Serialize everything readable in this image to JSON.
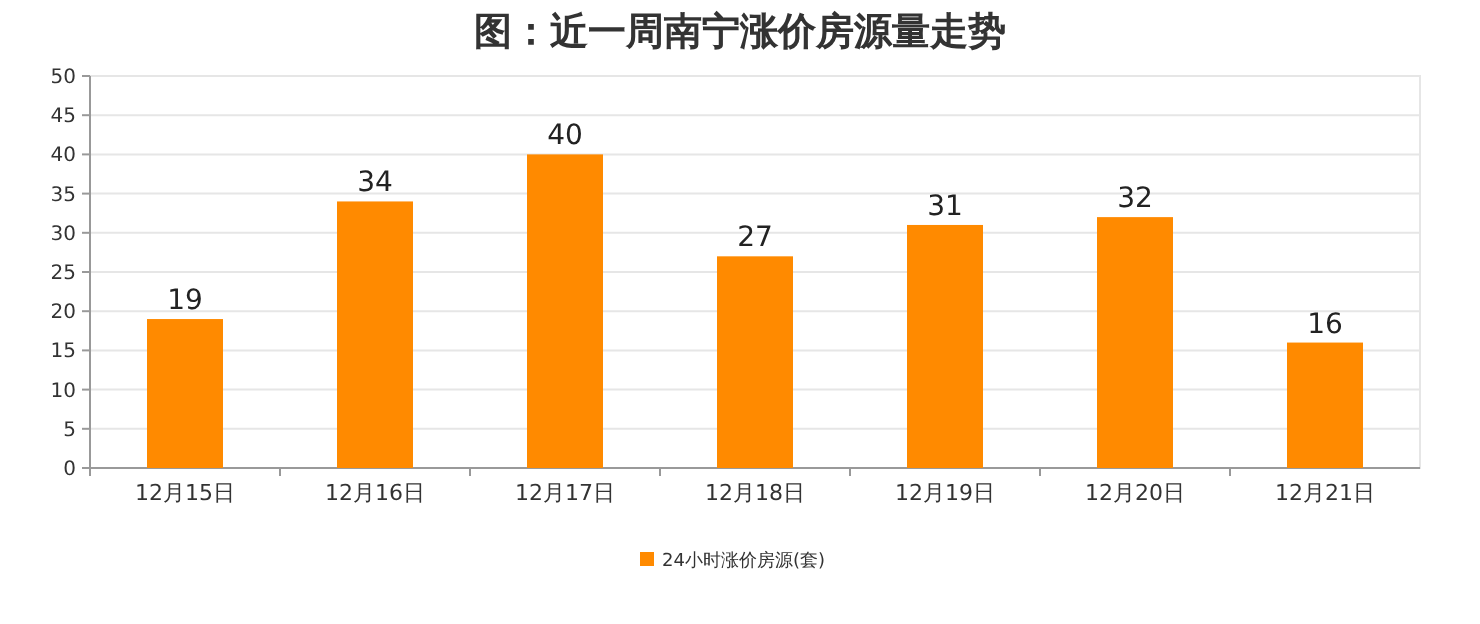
{
  "chart_data": {
    "type": "bar",
    "title": "图：近一周南宁涨价房源量走势",
    "categories": [
      "12月15日",
      "12月16日",
      "12月17日",
      "12月18日",
      "12月19日",
      "12月20日",
      "12月21日"
    ],
    "series": [
      {
        "name": "24小时涨价房源(套)",
        "color": "#ff8a00",
        "values": [
          19,
          34,
          40,
          27,
          31,
          32,
          16
        ]
      }
    ],
    "ylim": [
      0,
      50
    ],
    "yticks": [
      0,
      5,
      10,
      15,
      20,
      25,
      30,
      35,
      40,
      45,
      50
    ],
    "grid": "y",
    "legend": "bottom",
    "data_labels": true
  }
}
